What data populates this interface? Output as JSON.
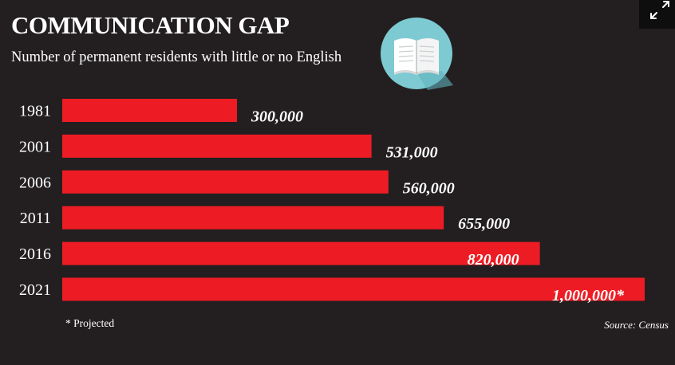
{
  "title": "COMMUNICATION GAP",
  "subtitle": "Number of permanent residents with little or no English",
  "footnote": "* Projected",
  "source": "Source: Census",
  "icons": {
    "book": "open-book-icon",
    "expand": "expand-icon"
  },
  "colors": {
    "background": "#231f20",
    "bar": "#ed1c24",
    "text": "#ffffff",
    "icon_circle": "#7ecad3"
  },
  "chart_data": {
    "type": "bar",
    "orientation": "horizontal",
    "categories": [
      "1981",
      "2001",
      "2006",
      "2011",
      "2016",
      "2021"
    ],
    "values": [
      300000,
      531000,
      560000,
      655000,
      820000,
      1000000
    ],
    "data_labels": [
      "300,000",
      "531,000",
      "560,000",
      "655,000",
      "820,000",
      "1,000,000*"
    ],
    "title": "COMMUNICATION GAP",
    "xlabel": "",
    "ylabel": "",
    "xlim": [
      0,
      1000000
    ],
    "grid": false,
    "legend": "none"
  }
}
